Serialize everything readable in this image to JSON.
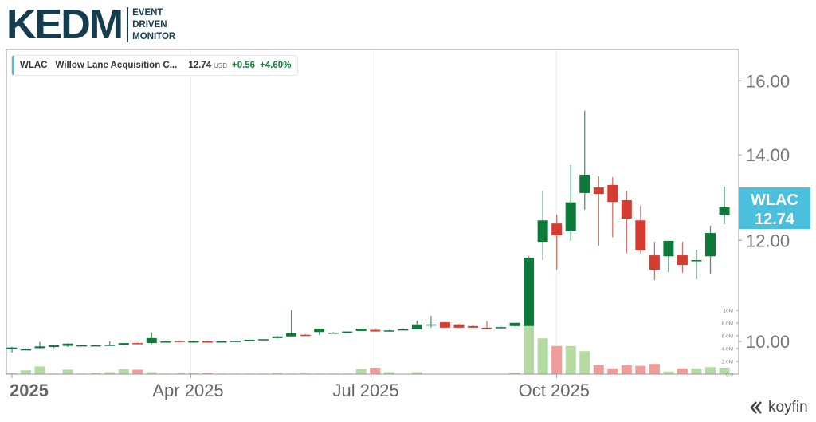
{
  "logo": {
    "main": "KEDM",
    "line1": "EVENT",
    "line2": "DRIVEN",
    "line3": "MONITOR"
  },
  "legend": {
    "ticker": "WLAC",
    "name": "Willow Lane Acquisition C...",
    "price": "12.74",
    "currency": "USD",
    "change": "+0.56",
    "change_pct": "+4.60%"
  },
  "price_tag": {
    "ticker": "WLAC",
    "price": "12.74"
  },
  "brand": "koyfin",
  "colors": {
    "up": "#0e7a3a",
    "down": "#d63b30",
    "vol_up": "#b6dba2",
    "vol_down": "#ef9c9a",
    "tag": "#4bbfde"
  },
  "chart_data": {
    "type": "candlestick",
    "title": "WLAC Willow Lane Acquisition C...",
    "interval": "weekly",
    "y_scale": "log",
    "ylim": [
      9.45,
      16.8
    ],
    "y_ticks": [
      "10.00",
      "12.00",
      "14.00",
      "16.00"
    ],
    "y_tick_values": [
      10,
      12,
      14,
      16
    ],
    "volume_ticks": [
      "2.0M",
      "4.0M",
      "6.0M",
      "8.0M",
      "10M",
      "0.0"
    ],
    "volume_tick_values": [
      2,
      4,
      6,
      8,
      10,
      0
    ],
    "x_ticks": [
      {
        "label": "2025",
        "index": 0,
        "bold": true
      },
      {
        "label": "Apr 2025",
        "index": 12.8
      },
      {
        "label": "Jul 2025",
        "index": 25.7
      },
      {
        "label": "Oct 2025",
        "index": 39
      }
    ],
    "candle_fields": [
      "open",
      "high",
      "low",
      "close",
      "volume_millions"
    ],
    "candles": [
      [
        9.86,
        9.9,
        9.8,
        9.89,
        0.2
      ],
      [
        9.86,
        9.87,
        9.85,
        9.86,
        0.6
      ],
      [
        9.88,
        9.99,
        9.87,
        9.91,
        1.2
      ],
      [
        9.9,
        9.94,
        9.88,
        9.93,
        0.1
      ],
      [
        9.92,
        9.97,
        9.9,
        9.96,
        0.7
      ],
      [
        9.93,
        9.94,
        9.92,
        9.93,
        0.1
      ],
      [
        9.93,
        9.94,
        9.92,
        9.93,
        0.2
      ],
      [
        9.93,
        10.0,
        9.92,
        9.94,
        0.3
      ],
      [
        9.94,
        9.97,
        9.93,
        9.97,
        0.8
      ],
      [
        9.97,
        9.98,
        9.95,
        9.96,
        0.7
      ],
      [
        9.97,
        10.16,
        9.95,
        10.06,
        0.3
      ],
      [
        10.0,
        10.01,
        9.99,
        10.0,
        0.1
      ],
      [
        10.01,
        10.02,
        9.99,
        9.99,
        0.1
      ],
      [
        10.0,
        10.01,
        9.99,
        10.0,
        0.2
      ],
      [
        10.0,
        10.01,
        9.99,
        9.99,
        0.2
      ],
      [
        9.99,
        10.0,
        9.99,
        10.0,
        0.1
      ],
      [
        10.0,
        10.01,
        9.99,
        10.01,
        0.1
      ],
      [
        10.01,
        10.03,
        10.01,
        10.03,
        0.1
      ],
      [
        10.03,
        10.04,
        10.03,
        10.04,
        0.1
      ],
      [
        10.06,
        10.1,
        10.05,
        10.09,
        0.2
      ],
      [
        10.09,
        10.58,
        10.09,
        10.15,
        0.1
      ],
      [
        10.12,
        10.13,
        10.11,
        10.11,
        0.1
      ],
      [
        10.17,
        10.23,
        10.12,
        10.23,
        0.1
      ],
      [
        10.16,
        10.17,
        10.15,
        10.16,
        0.1
      ],
      [
        10.17,
        10.18,
        10.17,
        10.18,
        0.1
      ],
      [
        10.19,
        10.23,
        10.19,
        10.23,
        0.8
      ],
      [
        10.21,
        10.24,
        10.18,
        10.18,
        1.0
      ],
      [
        10.2,
        10.21,
        10.19,
        10.2,
        0.3
      ],
      [
        10.22,
        10.23,
        10.21,
        10.22,
        0.05
      ],
      [
        10.22,
        10.38,
        10.22,
        10.31,
        0.3
      ],
      [
        10.31,
        10.47,
        10.25,
        10.31,
        0.05
      ],
      [
        10.35,
        10.36,
        10.25,
        10.25,
        0.05
      ],
      [
        10.31,
        10.32,
        10.25,
        10.25,
        0.05
      ],
      [
        10.28,
        10.29,
        10.25,
        10.25,
        0.05
      ],
      [
        10.25,
        10.37,
        10.23,
        10.23,
        0.05
      ],
      [
        10.26,
        10.27,
        10.25,
        10.26,
        0.05
      ],
      [
        10.28,
        10.34,
        10.27,
        10.34,
        0.25
      ],
      [
        10.28,
        11.66,
        10.28,
        11.63,
        7.5
      ],
      [
        11.97,
        13.12,
        11.58,
        12.44,
        5.6
      ],
      [
        12.37,
        12.57,
        11.38,
        12.11,
        4.4
      ],
      [
        12.2,
        13.74,
        11.99,
        12.85,
        4.4
      ],
      [
        13.07,
        15.16,
        12.68,
        13.51,
        3.6
      ],
      [
        13.2,
        13.47,
        11.88,
        13.05,
        1.4
      ],
      [
        13.26,
        13.45,
        12.07,
        12.86,
        0.9
      ],
      [
        12.9,
        13.12,
        11.72,
        12.48,
        1.4
      ],
      [
        12.44,
        12.77,
        11.72,
        11.78,
        1.3
      ],
      [
        11.68,
        11.97,
        11.17,
        11.38,
        1.6
      ],
      [
        11.66,
        11.99,
        11.33,
        11.99,
        0.4
      ],
      [
        11.68,
        11.97,
        11.32,
        11.48,
        0.9
      ],
      [
        11.58,
        11.8,
        11.19,
        11.58,
        0.9
      ],
      [
        11.66,
        12.32,
        11.29,
        12.16,
        1.1
      ],
      [
        12.57,
        13.22,
        12.36,
        12.74,
        1.0
      ]
    ]
  }
}
